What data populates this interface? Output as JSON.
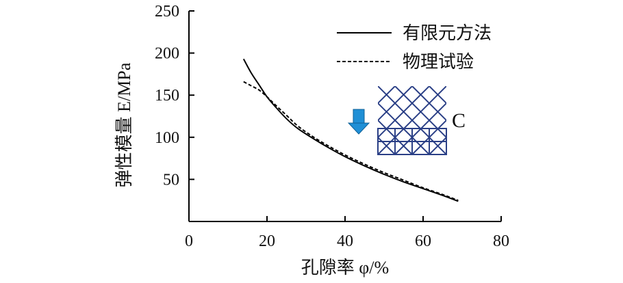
{
  "chart_data": {
    "type": "line",
    "xlabel": "孔隙率 φ/%",
    "ylabel": "弹性模量 E/MPa",
    "xlim": [
      0,
      80
    ],
    "ylim": [
      0,
      250
    ],
    "xticks": [
      "0",
      "20",
      "40",
      "60",
      "80"
    ],
    "yticks": [
      "50",
      "100",
      "150",
      "200",
      "250"
    ],
    "grid": false,
    "legend_position": "top-right",
    "series": [
      {
        "name": "有限元方法",
        "style": "solid",
        "x": [
          14,
          16,
          18,
          20,
          22,
          25,
          28,
          32,
          36,
          40,
          45,
          50,
          55,
          60,
          65,
          69
        ],
        "y": [
          193,
          176,
          162,
          148,
          137,
          122,
          110,
          98,
          87,
          77,
          66,
          56,
          47,
          39,
          31,
          24
        ]
      },
      {
        "name": "物理试验",
        "style": "dashed",
        "x": [
          14,
          16,
          18,
          20,
          22,
          25,
          28,
          32,
          36,
          40,
          45,
          50,
          55,
          60,
          65,
          69
        ],
        "y": [
          166,
          161,
          156,
          148,
          139,
          126,
          113,
          100,
          89,
          79,
          68,
          58,
          49,
          40,
          32,
          25
        ]
      }
    ],
    "inset": {
      "label": "C"
    }
  },
  "colors": {
    "line": "#000000",
    "arrow": "#1f8fd6",
    "lattice": "#2a3f86"
  }
}
